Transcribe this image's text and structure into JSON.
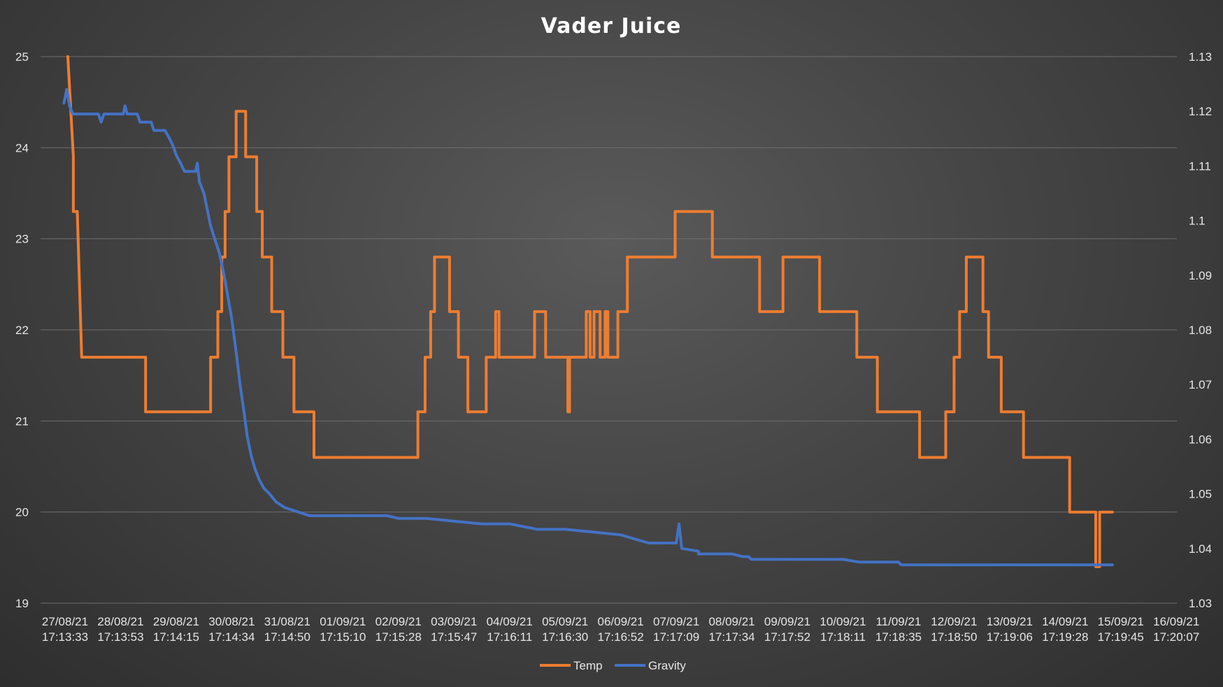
{
  "chart_data": {
    "type": "line",
    "title": "Vader Juice",
    "xlabel": "",
    "ylabel": "",
    "y2label": "",
    "ylim": [
      19,
      25
    ],
    "y2lim": [
      1.03,
      1.13
    ],
    "yticks": [
      "25",
      "24",
      "23",
      "22",
      "21",
      "20",
      "19"
    ],
    "y2ticks": [
      "1.13",
      "1.12",
      "1.11",
      "1.1",
      "1.09",
      "1.08",
      "1.07",
      "1.06",
      "1.05",
      "1.04",
      "1.03"
    ],
    "grid": true,
    "legend_position": "bottom",
    "categories": [
      [
        "27/08/21",
        "17:13:33"
      ],
      [
        "28/08/21",
        "17:13:53"
      ],
      [
        "29/08/21",
        "17:14:15"
      ],
      [
        "30/08/21",
        "17:14:34"
      ],
      [
        "31/08/21",
        "17:14:50"
      ],
      [
        "01/09/21",
        "17:15:10"
      ],
      [
        "02/09/21",
        "17:15:28"
      ],
      [
        "03/09/21",
        "17:15:47"
      ],
      [
        "04/09/21",
        "17:16:11"
      ],
      [
        "05/09/21",
        "17:16:30"
      ],
      [
        "06/09/21",
        "17:16:52"
      ],
      [
        "07/09/21",
        "17:17:09"
      ],
      [
        "08/09/21",
        "17:17:34"
      ],
      [
        "09/09/21",
        "17:17:52"
      ],
      [
        "10/09/21",
        "17:18:11"
      ],
      [
        "11/09/21",
        "17:18:35"
      ],
      [
        "12/09/21",
        "17:18:50"
      ],
      [
        "13/09/21",
        "17:19:06"
      ],
      [
        "14/09/21",
        "17:19:28"
      ],
      [
        "15/09/21",
        "17:19:45"
      ],
      [
        "16/09/21",
        "17:20:07"
      ]
    ],
    "series": [
      {
        "name": "Temp",
        "axis": "left",
        "color": "#ED7D31",
        "points": [
          [
            0.05,
            25
          ],
          [
            0.15,
            23.9
          ],
          [
            0.15,
            23.3
          ],
          [
            0.22,
            23.3
          ],
          [
            0.3,
            21.7
          ],
          [
            1.45,
            21.7
          ],
          [
            1.45,
            21.1
          ],
          [
            2.62,
            21.1
          ],
          [
            2.62,
            21.7
          ],
          [
            2.75,
            21.7
          ],
          [
            2.75,
            22.2
          ],
          [
            2.82,
            22.2
          ],
          [
            2.82,
            22.8
          ],
          [
            2.88,
            22.8
          ],
          [
            2.88,
            23.3
          ],
          [
            2.95,
            23.3
          ],
          [
            2.95,
            23.9
          ],
          [
            3.08,
            23.9
          ],
          [
            3.08,
            24.4
          ],
          [
            3.25,
            24.4
          ],
          [
            3.25,
            23.9
          ],
          [
            3.45,
            23.9
          ],
          [
            3.45,
            23.3
          ],
          [
            3.55,
            23.3
          ],
          [
            3.55,
            22.8
          ],
          [
            3.72,
            22.8
          ],
          [
            3.72,
            22.2
          ],
          [
            3.92,
            22.2
          ],
          [
            3.92,
            21.7
          ],
          [
            4.12,
            21.7
          ],
          [
            4.12,
            21.1
          ],
          [
            4.48,
            21.1
          ],
          [
            4.48,
            20.6
          ],
          [
            6.35,
            20.6
          ],
          [
            6.35,
            21.1
          ],
          [
            6.48,
            21.1
          ],
          [
            6.48,
            21.7
          ],
          [
            6.58,
            21.7
          ],
          [
            6.58,
            22.2
          ],
          [
            6.65,
            22.2
          ],
          [
            6.65,
            22.8
          ],
          [
            6.92,
            22.8
          ],
          [
            6.92,
            22.2
          ],
          [
            7.08,
            22.2
          ],
          [
            7.08,
            21.7
          ],
          [
            7.25,
            21.7
          ],
          [
            7.25,
            21.1
          ],
          [
            7.58,
            21.1
          ],
          [
            7.58,
            21.7
          ],
          [
            7.75,
            21.7
          ],
          [
            7.75,
            22.2
          ],
          [
            7.81,
            22.2
          ],
          [
            7.81,
            21.7
          ],
          [
            8.45,
            21.7
          ],
          [
            8.45,
            22.2
          ],
          [
            8.65,
            22.2
          ],
          [
            8.65,
            21.7
          ],
          [
            9.05,
            21.7
          ],
          [
            9.05,
            21.1
          ],
          [
            9.08,
            21.1
          ],
          [
            9.08,
            21.7
          ],
          [
            9.38,
            21.7
          ],
          [
            9.38,
            22.2
          ],
          [
            9.45,
            22.2
          ],
          [
            9.45,
            21.7
          ],
          [
            9.52,
            21.7
          ],
          [
            9.52,
            22.2
          ],
          [
            9.63,
            22.2
          ],
          [
            9.63,
            21.7
          ],
          [
            9.72,
            21.7
          ],
          [
            9.72,
            22.2
          ],
          [
            9.77,
            22.2
          ],
          [
            9.77,
            21.7
          ],
          [
            9.95,
            21.7
          ],
          [
            9.95,
            22.2
          ],
          [
            10.12,
            22.2
          ],
          [
            10.12,
            22.8
          ],
          [
            10.98,
            22.8
          ],
          [
            10.98,
            23.3
          ],
          [
            11.65,
            23.3
          ],
          [
            11.65,
            22.8
          ],
          [
            12.5,
            22.8
          ],
          [
            12.5,
            22.2
          ],
          [
            12.92,
            22.2
          ],
          [
            12.92,
            22.8
          ],
          [
            13.58,
            22.8
          ],
          [
            13.58,
            22.2
          ],
          [
            14.25,
            22.2
          ],
          [
            14.25,
            21.7
          ],
          [
            14.62,
            21.7
          ],
          [
            14.62,
            21.1
          ],
          [
            15.38,
            21.1
          ],
          [
            15.38,
            20.6
          ],
          [
            15.85,
            20.6
          ],
          [
            15.85,
            21.1
          ],
          [
            16.0,
            21.1
          ],
          [
            16.0,
            21.7
          ],
          [
            16.1,
            21.7
          ],
          [
            16.1,
            22.2
          ],
          [
            16.22,
            22.2
          ],
          [
            16.22,
            22.8
          ],
          [
            16.52,
            22.8
          ],
          [
            16.52,
            22.2
          ],
          [
            16.62,
            22.2
          ],
          [
            16.62,
            21.7
          ],
          [
            16.85,
            21.7
          ],
          [
            16.85,
            21.1
          ],
          [
            17.25,
            21.1
          ],
          [
            17.25,
            20.6
          ],
          [
            18.08,
            20.6
          ],
          [
            18.08,
            20.0
          ],
          [
            18.55,
            20.0
          ],
          [
            18.55,
            19.4
          ],
          [
            18.62,
            19.4
          ],
          [
            18.62,
            20.0
          ],
          [
            18.85,
            20.0
          ]
        ]
      },
      {
        "name": "Gravity",
        "axis": "right",
        "color": "#4472C4",
        "points": [
          [
            -0.02,
            1.1215
          ],
          [
            0.03,
            1.124
          ],
          [
            0.08,
            1.121
          ],
          [
            0.14,
            1.1195
          ],
          [
            0.6,
            1.1195
          ],
          [
            0.65,
            1.118
          ],
          [
            0.7,
            1.1195
          ],
          [
            1.05,
            1.1195
          ],
          [
            1.08,
            1.121
          ],
          [
            1.12,
            1.1195
          ],
          [
            1.3,
            1.1195
          ],
          [
            1.35,
            1.118
          ],
          [
            1.55,
            1.118
          ],
          [
            1.6,
            1.1165
          ],
          [
            1.8,
            1.1165
          ],
          [
            1.88,
            1.115
          ],
          [
            1.95,
            1.1135
          ],
          [
            2.0,
            1.112
          ],
          [
            2.08,
            1.1105
          ],
          [
            2.15,
            1.109
          ],
          [
            2.35,
            1.109
          ],
          [
            2.38,
            1.1105
          ],
          [
            2.42,
            1.107
          ],
          [
            2.5,
            1.105
          ],
          [
            2.56,
            1.102
          ],
          [
            2.62,
            1.099
          ],
          [
            2.7,
            1.0965
          ],
          [
            2.78,
            1.094
          ],
          [
            2.88,
            1.089
          ],
          [
            3.0,
            1.082
          ],
          [
            3.08,
            1.076
          ],
          [
            3.15,
            1.07
          ],
          [
            3.22,
            1.065
          ],
          [
            3.28,
            1.0605
          ],
          [
            3.35,
            1.057
          ],
          [
            3.42,
            1.0545
          ],
          [
            3.5,
            1.0525
          ],
          [
            3.58,
            1.051
          ],
          [
            3.68,
            1.05
          ],
          [
            3.8,
            1.0485
          ],
          [
            3.95,
            1.0475
          ],
          [
            4.1,
            1.047
          ],
          [
            4.25,
            1.0465
          ],
          [
            4.4,
            1.046
          ],
          [
            5.8,
            1.046
          ],
          [
            6.0,
            1.0455
          ],
          [
            6.5,
            1.0455
          ],
          [
            7.0,
            1.045
          ],
          [
            7.5,
            1.0445
          ],
          [
            8.0,
            1.0445
          ],
          [
            8.5,
            1.0435
          ],
          [
            9.0,
            1.0435
          ],
          [
            9.5,
            1.043
          ],
          [
            10.0,
            1.0425
          ],
          [
            10.5,
            1.041
          ],
          [
            11.0,
            1.041
          ],
          [
            11.05,
            1.0445
          ],
          [
            11.1,
            1.04
          ],
          [
            11.4,
            1.0395
          ],
          [
            11.4,
            1.039
          ],
          [
            12.0,
            1.039
          ],
          [
            12.2,
            1.0385
          ],
          [
            12.3,
            1.0385
          ],
          [
            12.35,
            1.038
          ],
          [
            13.5,
            1.038
          ],
          [
            14.0,
            1.038
          ],
          [
            14.3,
            1.0375
          ],
          [
            15.0,
            1.0375
          ],
          [
            15.05,
            1.037
          ],
          [
            16.0,
            1.037
          ],
          [
            18.85,
            1.037
          ]
        ]
      }
    ]
  }
}
